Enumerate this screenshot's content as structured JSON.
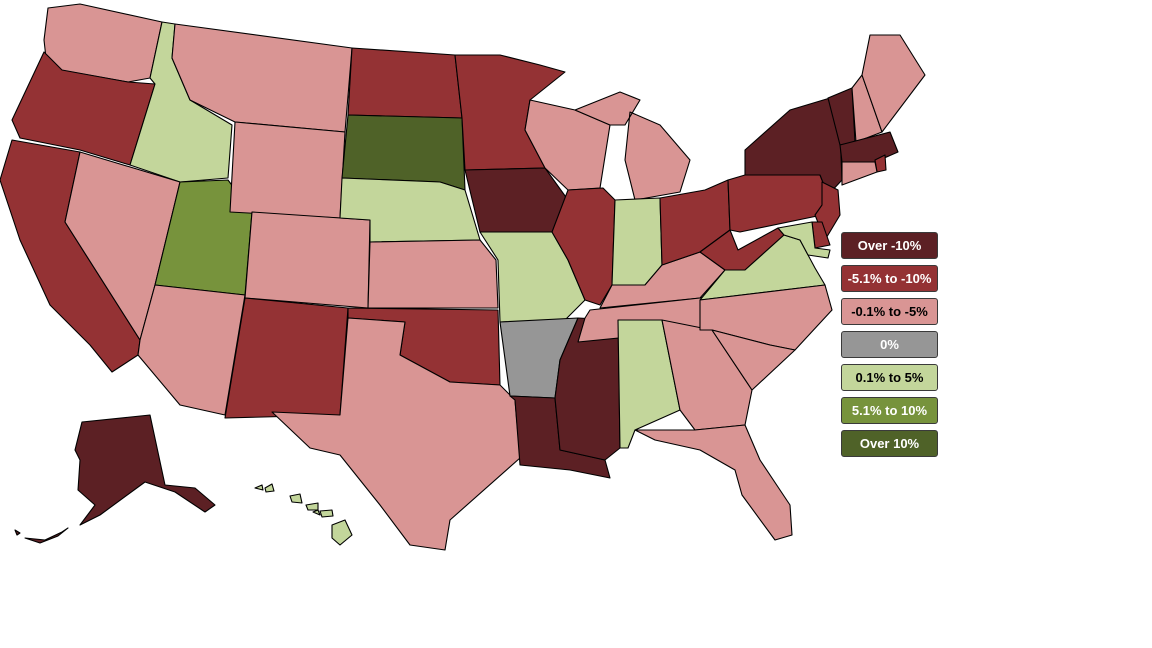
{
  "legend": {
    "items": [
      {
        "label": "Over -10%",
        "color": "#5c2024",
        "text_color": "#ffffff"
      },
      {
        "label": "-5.1% to -10%",
        "color": "#943234",
        "text_color": "#ffffff"
      },
      {
        "label": "-0.1% to -5%",
        "color": "#d99594",
        "text_color": "#000000"
      },
      {
        "label": "0%",
        "color": "#969696",
        "text_color": "#ffffff"
      },
      {
        "label": "0.1% to 5%",
        "color": "#c3d69b",
        "text_color": "#000000"
      },
      {
        "label": "5.1% to 10%",
        "color": "#77933c",
        "text_color": "#ffffff"
      },
      {
        "label": "Over 10%",
        "color": "#4f6228",
        "text_color": "#ffffff"
      }
    ]
  },
  "states": {
    "WA": 2,
    "OR": 1,
    "CA": 1,
    "ID": 4,
    "NV": 2,
    "UT": 5,
    "AZ": 2,
    "MT": 2,
    "WY": 2,
    "CO": 2,
    "NM": 1,
    "ND": 1,
    "SD": 6,
    "NE": 4,
    "KS": 2,
    "OK": 1,
    "TX": 2,
    "MN": 1,
    "IA": 0,
    "MO": 4,
    "AR": 3,
    "LA": 0,
    "WI": 2,
    "IL": 1,
    "MS": 0,
    "MI": 2,
    "IN": 4,
    "KY": 2,
    "TN": 2,
    "AL": 4,
    "GA": 2,
    "FL": 2,
    "OH": 1,
    "WV": 1,
    "VA": 4,
    "NC": 2,
    "SC": 2,
    "PA": 1,
    "NY": 0,
    "VT": 0,
    "NH": 2,
    "ME": 2,
    "MA": 0,
    "RI": 1,
    "CT": 2,
    "NJ": 1,
    "DE": 1,
    "MD": 4,
    "AK": 0,
    "HI": 4
  }
}
